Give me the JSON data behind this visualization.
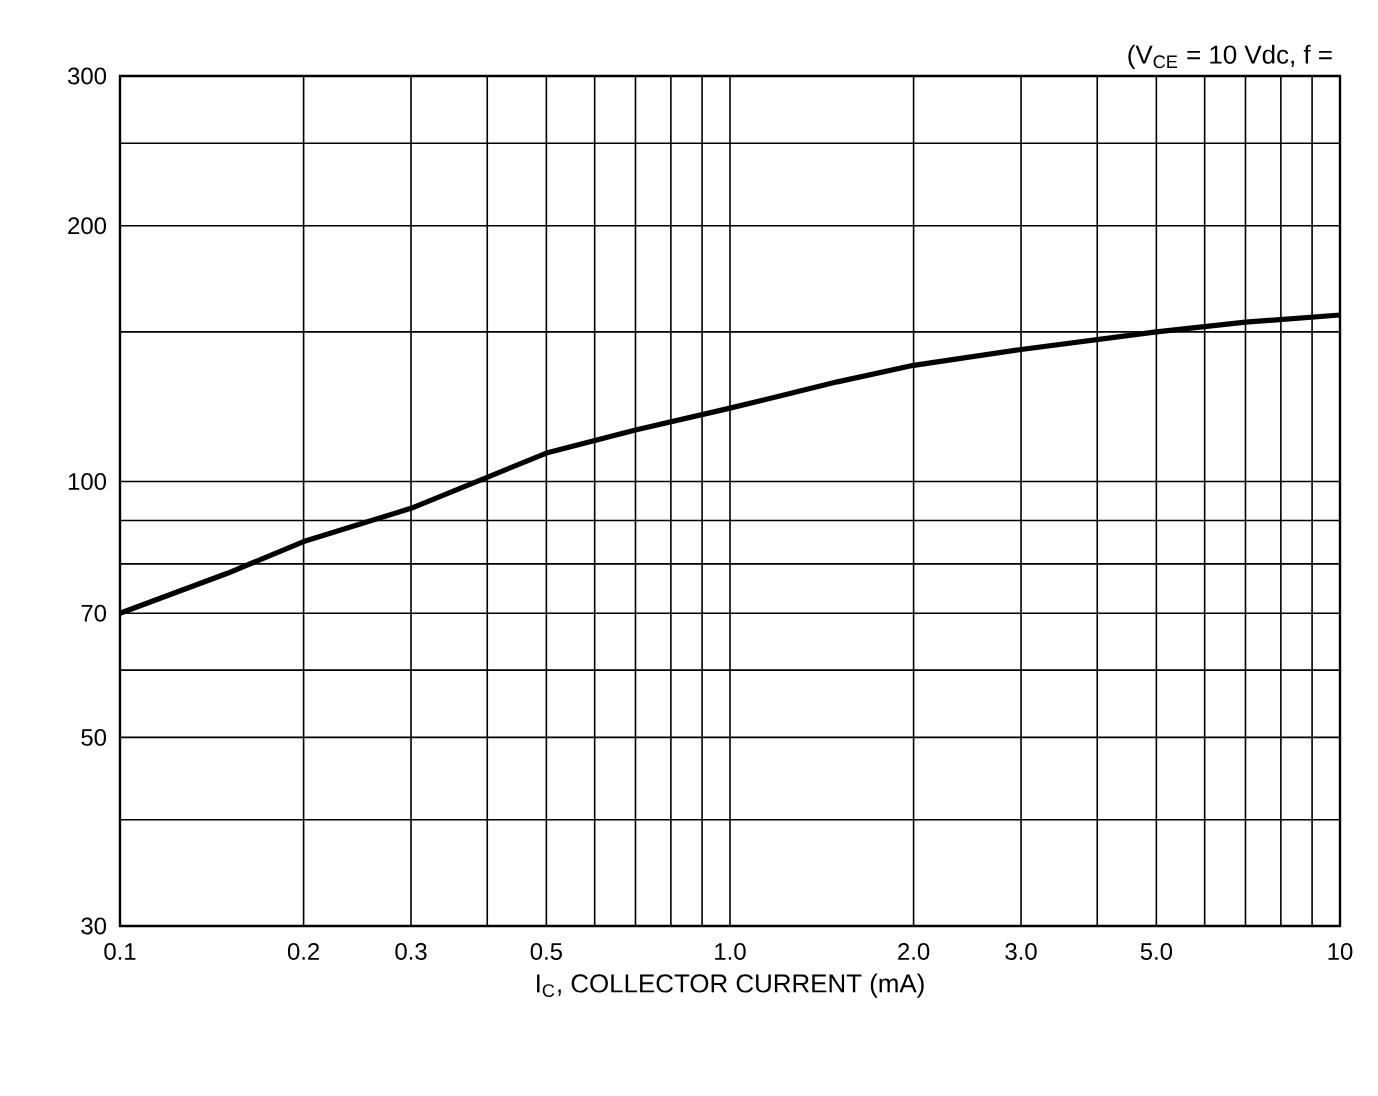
{
  "chart_data": {
    "type": "line",
    "xlabel": "I$_{C}$, COLLECTOR CURRENT (mA)",
    "annotations": [
      "(V$_{CE}$ = 10 Vdc, f ="
    ],
    "log": "xy",
    "grid": true,
    "x": [
      0.1,
      0.15,
      0.2,
      0.3,
      0.5,
      0.7,
      1.0,
      1.5,
      2.0,
      3.0,
      5.0,
      7.0,
      10
    ],
    "series": [
      {
        "color": "#000000",
        "values": [
          70,
          78,
          85,
          93,
          108,
          115,
          122,
          131,
          137,
          143,
          150,
          154,
          157
        ]
      }
    ],
    "xlim": [
      0.1,
      10
    ],
    "ylim": [
      30,
      300
    ],
    "xticks": [
      {
        "value": 0.1,
        "label": "0.1"
      },
      {
        "value": 0.2,
        "label": "0.2"
      },
      {
        "value": 0.3,
        "label": "0.3"
      },
      {
        "value": 0.4,
        "label": null
      },
      {
        "value": 0.5,
        "label": "0.5"
      },
      {
        "value": 0.6,
        "label": null
      },
      {
        "value": 0.7,
        "label": null
      },
      {
        "value": 0.8,
        "label": null
      },
      {
        "value": 0.9,
        "label": null
      },
      {
        "value": 1,
        "label": "1.0"
      },
      {
        "value": 2,
        "label": "2.0"
      },
      {
        "value": 3,
        "label": "3.0"
      },
      {
        "value": 4,
        "label": null
      },
      {
        "value": 5,
        "label": "5.0"
      },
      {
        "value": 6,
        "label": null
      },
      {
        "value": 7,
        "label": null
      },
      {
        "value": 8,
        "label": null
      },
      {
        "value": 9,
        "label": null
      },
      {
        "value": 10,
        "label": "10"
      }
    ],
    "yticks": [
      30,
      {
        "value": 40,
        "label": null
      },
      50,
      {
        "value": 60,
        "label": null
      },
      70,
      {
        "value": 80,
        "label": null
      },
      {
        "value": 90,
        "label": null
      },
      100,
      {
        "value": 150,
        "label": null
      },
      200,
      {
        "value": 250,
        "label": null
      },
      300
    ]
  }
}
